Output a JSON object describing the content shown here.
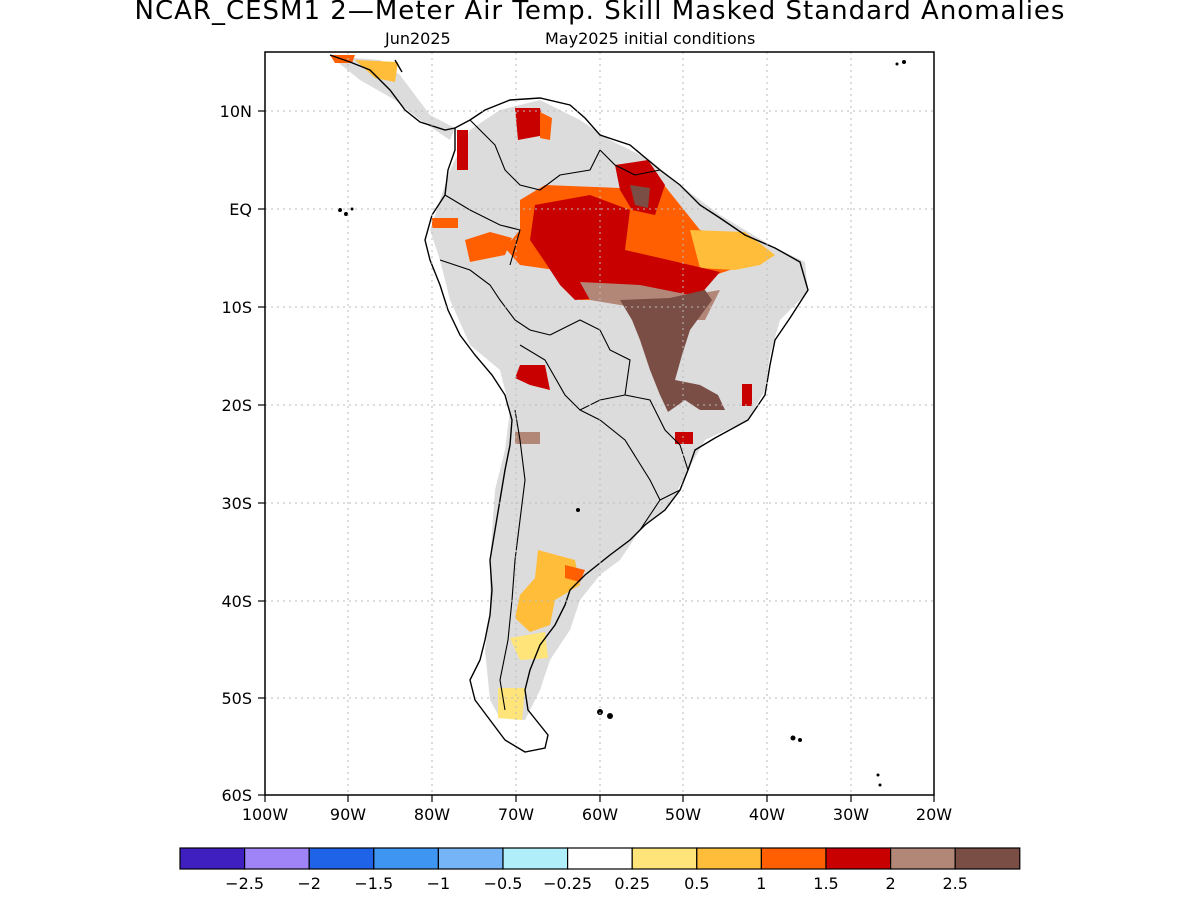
{
  "title": "NCAR_CESM1 2—Meter Air Temp. Skill Masked Standard Anomalies",
  "subtitle_left": "Jun2025",
  "subtitle_right": "May2025 initial conditions",
  "lat_ticks": [
    "10N",
    "EQ",
    "10S",
    "20S",
    "30S",
    "40S",
    "50S",
    "60S"
  ],
  "lon_ticks": [
    "100W",
    "90W",
    "80W",
    "70W",
    "60W",
    "50W",
    "40W",
    "30W",
    "20W"
  ],
  "legend": {
    "colors": [
      "#3f1fbf",
      "#9f84f7",
      "#1f63e8",
      "#3f95f2",
      "#75b5f7",
      "#b0eefa",
      "#ffffff",
      "#ffe47a",
      "#ffbd3a",
      "#ff5f00",
      "#c90000",
      "#b38778",
      "#7a4d45"
    ],
    "labels": [
      "−2.5",
      "−2",
      "−1.5",
      "−1",
      "−0.5",
      "−0.25",
      "0.25",
      "0.5",
      "1",
      "1.5",
      "2",
      "2.5"
    ]
  },
  "colors": {
    "land_no_skill": "#dcdcdc",
    "grid": "#bbbbbb"
  }
}
